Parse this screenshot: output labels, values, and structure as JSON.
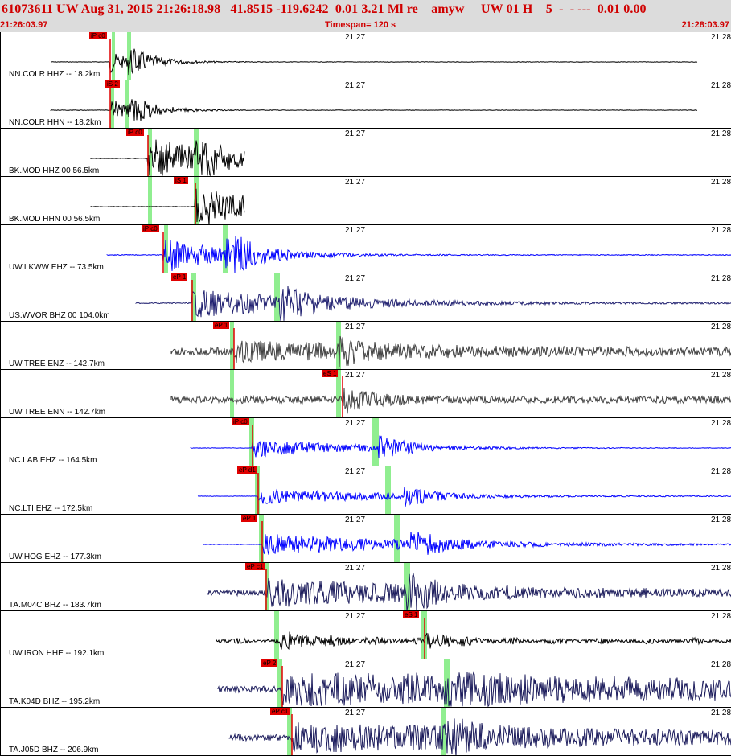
{
  "header": {
    "title": "61073611 UW Aug 31, 2015 21:26:18.98   41.8515 -119.6242  0.01 3.21 Ml re    amyw     UW 01 H    5  -  - ---  0.01 0.00",
    "start_time": "21:26:03.97",
    "timespan": "Timespan= 120 s",
    "end_time": "21:28:03.97"
  },
  "time_ticks": {
    "mid": "21:27",
    "right": "21:28"
  },
  "colors": {
    "pick_tag": "#e00000",
    "window_marker": "#90ee90",
    "header_text": "#d00000",
    "header_bg": "#dcdcdc"
  },
  "traces": [
    {
      "label": "NN.COLR HHZ -- 18.2km",
      "pick": "iP c0",
      "color": "#000000"
    },
    {
      "label": "NN.COLR HHN -- 18.2km",
      "pick": "iS 2",
      "color": "#000000"
    },
    {
      "label": "BK.MOD HHZ 00 56.5km",
      "pick": "iP c0",
      "color": "#000000"
    },
    {
      "label": "BK.MOD HHN 00 56.5km",
      "pick": "iS 1",
      "color": "#000000"
    },
    {
      "label": "UW.LKWW EHZ -- 73.5km",
      "pick": "iP c0",
      "color": "#0000ff"
    },
    {
      "label": "US.WVOR BHZ 00 104.0km",
      "pick": "eP 1",
      "color": "#202070"
    },
    {
      "label": "UW.TREE ENZ -- 142.7km",
      "pick": "eP 1",
      "color": "#404040"
    },
    {
      "label": "UW.TREE ENN -- 142.7km",
      "pick": "eS 1",
      "color": "#404040"
    },
    {
      "label": "NC.LAB EHZ -- 164.5km",
      "pick": "iP c0",
      "color": "#0000ff"
    },
    {
      "label": "NC.LTI EHZ -- 172.5km",
      "pick": "eP d1",
      "color": "#0000ff"
    },
    {
      "label": "UW.HOG EHZ -- 177.3km",
      "pick": "eP 1",
      "color": "#0000ff"
    },
    {
      "label": "TA.M04C BHZ -- 183.7km",
      "pick": "eP c1",
      "color": "#1c1c5c"
    },
    {
      "label": "UW.IRON HHE -- 192.1km",
      "pick": "eS 1",
      "color": "#000000"
    },
    {
      "label": "TA.K04D BHZ -- 195.2km",
      "pick": "eP 2",
      "color": "#1c1c5c"
    },
    {
      "label": "TA.J05D BHZ -- 206.9km",
      "pick": "eP c1",
      "color": "#1c1c5c"
    }
  ]
}
